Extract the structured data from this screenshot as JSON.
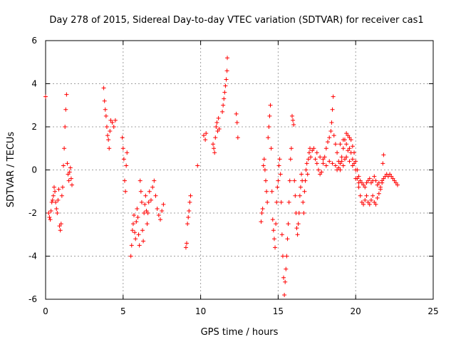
{
  "chart_data": {
    "type": "scatter",
    "title": "Day 278 of 2015, Sidereal Day-to-day VTEC variation (SDTVAR) for receiver cas1",
    "xlabel": "GPS time / hours",
    "ylabel": "SDTVAR / TECUs",
    "xlim": [
      0,
      25
    ],
    "ylim": [
      -6,
      6
    ],
    "x_ticks": [
      0,
      5,
      10,
      15,
      20,
      25
    ],
    "y_ticks": [
      -6,
      -4,
      -2,
      0,
      2,
      4,
      6
    ],
    "x_tick_labels": [
      "0",
      "5",
      "10",
      "15",
      "20",
      "25"
    ],
    "y_tick_labels": [
      "-6",
      "-4",
      "-2",
      "0",
      "2",
      "4",
      "6"
    ],
    "grid": true,
    "marker": "+",
    "color": "#ff0000",
    "series": [
      {
        "name": "SDTVAR",
        "points": [
          [
            0.0,
            3.4
          ],
          [
            0.2,
            -2.0
          ],
          [
            0.25,
            -2.2
          ],
          [
            0.3,
            -2.3
          ],
          [
            0.35,
            -1.9
          ],
          [
            0.4,
            -1.5
          ],
          [
            0.45,
            -1.4
          ],
          [
            0.5,
            -1.2
          ],
          [
            0.55,
            -0.8
          ],
          [
            0.6,
            -1.0
          ],
          [
            0.65,
            -1.5
          ],
          [
            0.7,
            -1.8
          ],
          [
            0.75,
            -2.0
          ],
          [
            0.8,
            -1.4
          ],
          [
            0.85,
            -0.9
          ],
          [
            0.9,
            -2.6
          ],
          [
            0.95,
            -2.8
          ],
          [
            1.0,
            -2.5
          ],
          [
            1.05,
            -1.2
          ],
          [
            1.1,
            -0.8
          ],
          [
            1.15,
            0.2
          ],
          [
            1.2,
            1.0
          ],
          [
            1.25,
            2.0
          ],
          [
            1.3,
            2.8
          ],
          [
            1.35,
            3.5
          ],
          [
            1.4,
            0.3
          ],
          [
            1.45,
            -0.2
          ],
          [
            1.5,
            -0.5
          ],
          [
            1.55,
            -0.1
          ],
          [
            1.6,
            0.1
          ],
          [
            1.65,
            -0.4
          ],
          [
            1.7,
            -0.7
          ],
          [
            3.75,
            3.8
          ],
          [
            3.8,
            3.2
          ],
          [
            3.85,
            2.8
          ],
          [
            3.9,
            2.5
          ],
          [
            3.95,
            2.0
          ],
          [
            4.0,
            1.6
          ],
          [
            4.05,
            1.4
          ],
          [
            4.1,
            1.0
          ],
          [
            4.15,
            1.8
          ],
          [
            4.2,
            2.3
          ],
          [
            4.3,
            2.2
          ],
          [
            4.4,
            2.0
          ],
          [
            4.5,
            2.3
          ],
          [
            4.95,
            1.5
          ],
          [
            5.0,
            1.0
          ],
          [
            5.05,
            0.5
          ],
          [
            5.1,
            -0.5
          ],
          [
            5.15,
            -1.0
          ],
          [
            5.2,
            0.2
          ],
          [
            5.25,
            0.8
          ],
          [
            5.5,
            -4.0
          ],
          [
            5.55,
            -3.5
          ],
          [
            5.6,
            -2.8
          ],
          [
            5.65,
            -2.5
          ],
          [
            5.7,
            -2.1
          ],
          [
            5.75,
            -2.9
          ],
          [
            5.8,
            -3.2
          ],
          [
            5.85,
            -2.4
          ],
          [
            5.9,
            -1.8
          ],
          [
            5.95,
            -2.2
          ],
          [
            6.0,
            -3.0
          ],
          [
            6.05,
            -3.5
          ],
          [
            6.1,
            -0.5
          ],
          [
            6.15,
            -1.0
          ],
          [
            6.2,
            -1.5
          ],
          [
            6.25,
            -2.8
          ],
          [
            6.3,
            -3.3
          ],
          [
            6.35,
            -2.0
          ],
          [
            6.4,
            -1.6
          ],
          [
            6.45,
            -1.2
          ],
          [
            6.5,
            -1.9
          ],
          [
            6.55,
            -2.5
          ],
          [
            6.6,
            -2.0
          ],
          [
            6.65,
            -1.5
          ],
          [
            6.7,
            -1.0
          ],
          [
            6.8,
            -1.4
          ],
          [
            6.9,
            -0.8
          ],
          [
            7.0,
            -0.5
          ],
          [
            7.1,
            -1.2
          ],
          [
            7.2,
            -1.8
          ],
          [
            7.3,
            -2.1
          ],
          [
            7.4,
            -2.3
          ],
          [
            7.5,
            -1.9
          ],
          [
            7.6,
            -1.6
          ],
          [
            9.05,
            -3.6
          ],
          [
            9.1,
            -3.4
          ],
          [
            9.15,
            -2.5
          ],
          [
            9.2,
            -2.2
          ],
          [
            9.25,
            -1.9
          ],
          [
            9.3,
            -1.5
          ],
          [
            9.35,
            -1.2
          ],
          [
            9.8,
            0.2
          ],
          [
            10.2,
            1.6
          ],
          [
            10.3,
            1.4
          ],
          [
            10.35,
            1.7
          ],
          [
            10.8,
            1.2
          ],
          [
            10.85,
            1.0
          ],
          [
            10.9,
            0.8
          ],
          [
            10.95,
            1.5
          ],
          [
            11.0,
            2.0
          ],
          [
            11.05,
            2.2
          ],
          [
            11.1,
            1.8
          ],
          [
            11.15,
            2.4
          ],
          [
            11.2,
            1.9
          ],
          [
            11.4,
            2.7
          ],
          [
            11.45,
            3.0
          ],
          [
            11.5,
            3.3
          ],
          [
            11.55,
            3.6
          ],
          [
            11.6,
            3.9
          ],
          [
            11.65,
            4.2
          ],
          [
            11.7,
            4.6
          ],
          [
            11.72,
            5.2
          ],
          [
            12.3,
            2.6
          ],
          [
            12.35,
            2.2
          ],
          [
            12.4,
            1.5
          ],
          [
            13.9,
            -2.4
          ],
          [
            13.95,
            -2.0
          ],
          [
            14.0,
            -1.8
          ],
          [
            14.05,
            0.2
          ],
          [
            14.1,
            0.5
          ],
          [
            14.15,
            0.0
          ],
          [
            14.2,
            -0.5
          ],
          [
            14.25,
            -1.0
          ],
          [
            14.3,
            -1.5
          ],
          [
            14.35,
            1.5
          ],
          [
            14.4,
            2.0
          ],
          [
            14.45,
            2.5
          ],
          [
            14.5,
            3.0
          ],
          [
            14.55,
            1.0
          ],
          [
            14.6,
            -1.0
          ],
          [
            14.65,
            -2.3
          ],
          [
            14.7,
            -2.8
          ],
          [
            14.75,
            -3.2
          ],
          [
            14.8,
            -3.6
          ],
          [
            14.85,
            -2.5
          ],
          [
            14.9,
            -1.5
          ],
          [
            14.95,
            -0.8
          ],
          [
            15.0,
            -0.5
          ],
          [
            15.05,
            0.2
          ],
          [
            15.1,
            0.5
          ],
          [
            15.15,
            -0.2
          ],
          [
            15.2,
            -1.5
          ],
          [
            15.25,
            -3.0
          ],
          [
            15.3,
            -4.0
          ],
          [
            15.35,
            -5.0
          ],
          [
            15.4,
            -5.8
          ],
          [
            15.45,
            -5.2
          ],
          [
            15.5,
            -4.6
          ],
          [
            15.55,
            -4.0
          ],
          [
            15.6,
            -3.2
          ],
          [
            15.65,
            -2.5
          ],
          [
            15.7,
            -1.5
          ],
          [
            15.75,
            -0.5
          ],
          [
            15.8,
            0.5
          ],
          [
            15.85,
            1.0
          ],
          [
            15.9,
            2.5
          ],
          [
            15.95,
            2.3
          ],
          [
            16.0,
            2.1
          ],
          [
            16.05,
            -0.5
          ],
          [
            16.1,
            -1.2
          ],
          [
            16.15,
            -2.0
          ],
          [
            16.2,
            -2.7
          ],
          [
            16.25,
            -3.0
          ],
          [
            16.3,
            -2.5
          ],
          [
            16.35,
            -2.0
          ],
          [
            16.4,
            -1.2
          ],
          [
            16.45,
            -0.8
          ],
          [
            16.5,
            -0.2
          ],
          [
            16.55,
            -0.5
          ],
          [
            16.6,
            -1.5
          ],
          [
            16.65,
            -2.0
          ],
          [
            16.7,
            -1.0
          ],
          [
            16.75,
            -0.5
          ],
          [
            16.8,
            0.0
          ],
          [
            16.85,
            0.3
          ],
          [
            16.9,
            -0.2
          ],
          [
            16.95,
            0.5
          ],
          [
            17.0,
            0.8
          ],
          [
            17.05,
            1.0
          ],
          [
            17.1,
            0.6
          ],
          [
            17.2,
            0.9
          ],
          [
            17.3,
            1.0
          ],
          [
            17.4,
            0.5
          ],
          [
            17.5,
            0.3
          ],
          [
            17.6,
            0.0
          ],
          [
            17.7,
            -0.2
          ],
          [
            17.8,
            -0.1
          ],
          [
            17.9,
            0.3
          ],
          [
            18.0,
            0.6
          ],
          [
            18.1,
            1.0
          ],
          [
            18.2,
            1.3
          ],
          [
            18.3,
            1.5
          ],
          [
            18.4,
            1.8
          ],
          [
            18.45,
            2.2
          ],
          [
            18.5,
            2.8
          ],
          [
            18.55,
            3.4
          ],
          [
            18.6,
            1.6
          ],
          [
            18.7,
            1.2
          ],
          [
            18.8,
            0.8
          ],
          [
            18.9,
            0.4
          ],
          [
            19.0,
            0.0
          ],
          [
            19.1,
            0.6
          ],
          [
            19.2,
            1.0
          ],
          [
            19.3,
            1.4
          ],
          [
            19.4,
            1.7
          ],
          [
            19.5,
            1.6
          ],
          [
            19.6,
            1.5
          ],
          [
            19.7,
            1.4
          ],
          [
            19.8,
            1.1
          ],
          [
            19.9,
            0.8
          ],
          [
            20.0,
            0.4
          ],
          [
            20.1,
            0.0
          ],
          [
            20.2,
            -0.3
          ],
          [
            20.3,
            -0.5
          ],
          [
            20.4,
            -0.6
          ],
          [
            20.5,
            -0.7
          ],
          [
            20.6,
            -0.8
          ],
          [
            20.7,
            -0.6
          ],
          [
            20.8,
            -0.5
          ],
          [
            20.9,
            -0.4
          ],
          [
            21.0,
            -0.6
          ],
          [
            21.1,
            -0.5
          ],
          [
            21.2,
            -0.3
          ],
          [
            21.3,
            -0.5
          ],
          [
            21.4,
            -0.7
          ],
          [
            21.5,
            -0.6
          ],
          [
            21.6,
            -0.8
          ],
          [
            21.7,
            -0.6
          ],
          [
            21.8,
            -0.4
          ],
          [
            21.9,
            -0.3
          ],
          [
            22.0,
            -0.2
          ],
          [
            22.1,
            -0.3
          ],
          [
            22.2,
            -0.2
          ],
          [
            22.3,
            -0.3
          ],
          [
            22.4,
            -0.4
          ],
          [
            22.5,
            -0.5
          ],
          [
            22.6,
            -0.6
          ],
          [
            22.7,
            -0.7
          ],
          [
            18.7,
            0.2
          ],
          [
            18.8,
            0.0
          ],
          [
            18.9,
            0.1
          ],
          [
            19.0,
            0.3
          ],
          [
            19.1,
            0.4
          ],
          [
            19.2,
            0.2
          ],
          [
            19.3,
            0.5
          ],
          [
            19.4,
            0.6
          ],
          [
            19.5,
            0.9
          ],
          [
            19.6,
            1.0
          ],
          [
            19.7,
            0.8
          ],
          [
            19.8,
            0.5
          ],
          [
            19.9,
            0.3
          ],
          [
            20.0,
            0.0
          ],
          [
            20.1,
            -0.4
          ],
          [
            20.2,
            -0.8
          ],
          [
            20.3,
            -1.2
          ],
          [
            20.4,
            -1.5
          ],
          [
            20.5,
            -1.6
          ],
          [
            20.6,
            -1.4
          ],
          [
            20.7,
            -1.2
          ],
          [
            20.8,
            -1.5
          ],
          [
            20.9,
            -1.6
          ],
          [
            21.0,
            -1.4
          ],
          [
            21.1,
            -1.2
          ],
          [
            21.2,
            -1.5
          ],
          [
            21.3,
            -1.6
          ],
          [
            21.4,
            -1.3
          ],
          [
            21.5,
            -1.1
          ],
          [
            21.6,
            -0.9
          ],
          [
            21.7,
            -0.5
          ],
          [
            21.75,
            0.3
          ],
          [
            21.8,
            0.7
          ],
          [
            17.5,
            0.8
          ],
          [
            17.7,
            0.6
          ],
          [
            17.9,
            0.5
          ],
          [
            18.1,
            0.2
          ],
          [
            18.3,
            0.4
          ],
          [
            18.5,
            0.3
          ],
          [
            19.0,
            1.2
          ],
          [
            19.2,
            1.4
          ],
          [
            19.4,
            1.2
          ],
          [
            19.6,
            0.4
          ],
          [
            19.8,
            0.2
          ],
          [
            20.0,
            -0.4
          ],
          [
            20.2,
            -0.6
          ]
        ]
      }
    ]
  }
}
